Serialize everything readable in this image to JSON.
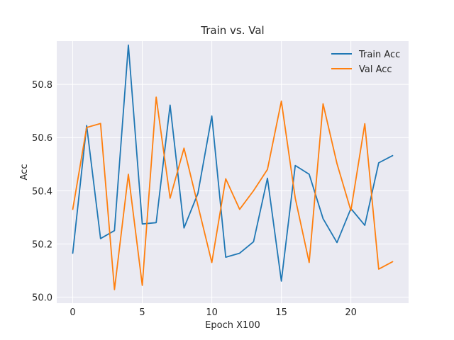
{
  "chart_data": {
    "type": "line",
    "title": "Train vs. Val",
    "xlabel": "Epoch X100",
    "ylabel": "Acc",
    "x": [
      0,
      1,
      2,
      3,
      4,
      5,
      6,
      7,
      8,
      9,
      10,
      11,
      12,
      13,
      14,
      15,
      16,
      17,
      18,
      19,
      20,
      21,
      22,
      23
    ],
    "xlim": [
      -1.15,
      24.15
    ],
    "ylim": [
      49.977,
      50.963
    ],
    "xticks": [
      0,
      5,
      10,
      15,
      20
    ],
    "yticks": [
      50.0,
      50.2,
      50.4,
      50.6,
      50.8
    ],
    "xtick_labels": [
      "0",
      "5",
      "10",
      "15",
      "20"
    ],
    "ytick_labels": [
      "50.0",
      "50.2",
      "50.4",
      "50.6",
      "50.8"
    ],
    "grid": true,
    "legend_position": "top-right",
    "series": [
      {
        "name": "Train Acc",
        "color": "#1f77b4",
        "values": [
          50.165,
          50.645,
          50.22,
          50.25,
          50.948,
          50.275,
          50.28,
          50.722,
          50.26,
          50.39,
          50.681,
          50.15,
          50.165,
          50.208,
          50.447,
          50.06,
          50.495,
          50.462,
          50.295,
          50.205,
          50.333,
          50.27,
          50.505,
          50.532
        ]
      },
      {
        "name": "Val Acc",
        "color": "#ff7f0e",
        "values": [
          50.33,
          50.638,
          50.653,
          50.028,
          50.462,
          50.044,
          50.752,
          50.372,
          50.56,
          50.345,
          50.13,
          50.445,
          50.33,
          50.4,
          50.48,
          50.737,
          50.372,
          50.13,
          50.727,
          50.502,
          50.325,
          50.652,
          50.105,
          50.133
        ]
      }
    ]
  }
}
